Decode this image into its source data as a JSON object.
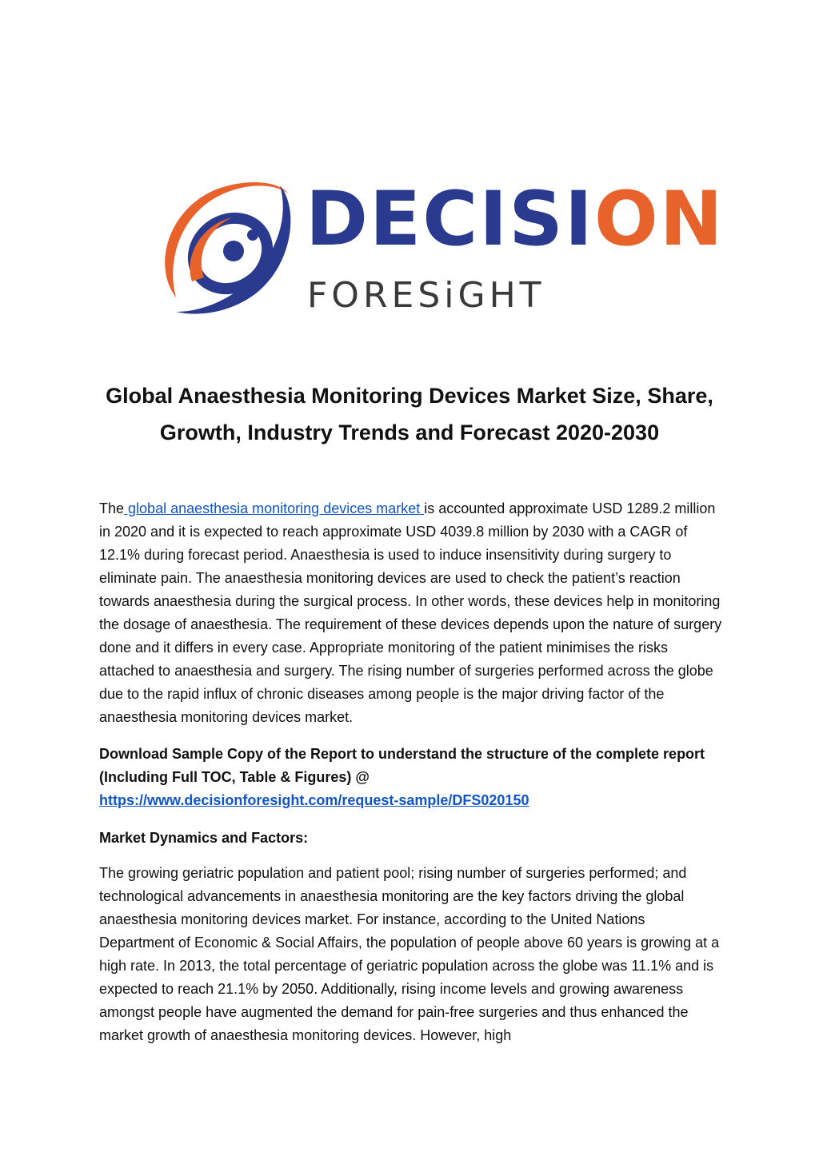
{
  "logo": {
    "brand_part1": "DECISI",
    "brand_part2": "ON",
    "brand_sub": "FORESiGHT",
    "colors": {
      "blue": "#2a3b8f",
      "orange": "#e8632b",
      "grey": "#3a3a3a"
    }
  },
  "title": "Global Anaesthesia Monitoring Devices Market Size, Share, Growth, Industry Trends and Forecast 2020-2030",
  "para1": {
    "before_link": "The",
    "link_text": " global anaesthesia monitoring devices market ",
    "after_link": "is accounted approximate USD 1289.2 million in 2020 and it is expected to reach approximate USD 4039.8 million by 2030 with a CAGR of 12.1% during forecast period. Anaesthesia is used to induce insensitivity during surgery to eliminate pain. The anaesthesia monitoring devices are used to check the patient’s reaction towards anaesthesia during the surgical process. In other words, these devices help in monitoring the dosage of anaesthesia. The requirement of these devices depends upon the nature of surgery done and it differs in every case. Appropriate monitoring of the patient minimises the risks attached to anaesthesia and surgery. The rising number of surgeries performed across the globe due to the rapid influx of chronic diseases among people is the major driving factor of the anaesthesia monitoring devices market."
  },
  "download": {
    "text": "Download Sample Copy of the Report to understand the structure of the complete report (Including Full TOC, Table & Figures) @",
    "url_text": "https://www.decisionforesight.com/request-sample/DFS020150"
  },
  "dynamics_heading": "Market Dynamics and Factors:",
  "para2": "The growing geriatric population and patient pool; rising number of surgeries performed; and technological advancements in anaesthesia monitoring are the key factors driving the global anaesthesia monitoring devices market. For instance, according to the United Nations Department of Economic & Social Affairs, the population of people above 60 years is growing at a high rate. In 2013, the total percentage of geriatric population across the globe was 11.1% and is expected to reach 21.1% by 2050. Additionally, rising income levels and growing awareness amongst people have augmented the demand for pain-free surgeries and thus enhanced the market growth of anaesthesia monitoring devices.  However, high"
}
